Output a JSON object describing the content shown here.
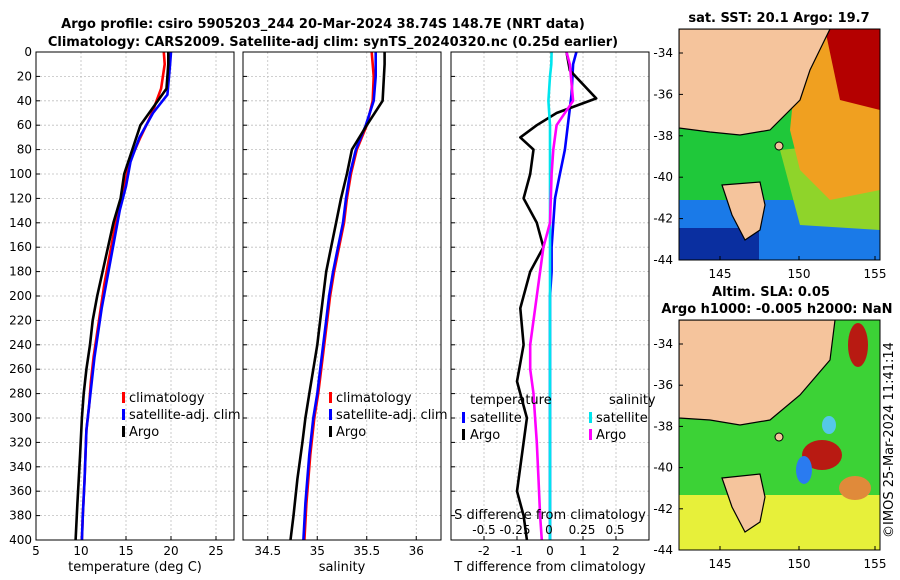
{
  "figure": {
    "title_line1": "Argo profile: csiro 5905203_244 20-Mar-2024 38.74S 148.7E (NRT data)",
    "title_line2": "Climatology: CARS2009. Satellite-adj clim: synTS_20240320.nc (0.25d earlier)",
    "watermark": "©IMOS 25-Mar-2024 11:41:14"
  },
  "colors": {
    "climatology": "#ff0000",
    "satellite": "#0000ff",
    "argo": "#000000",
    "sal_satellite": "#00e5ee",
    "sal_argo": "#ff00ff"
  },
  "chart_data": [
    {
      "type": "line",
      "id": "temperature",
      "xlabel": "temperature (deg C)",
      "xlim": [
        5,
        27
      ],
      "xticks": [
        5,
        10,
        15,
        20,
        25
      ],
      "ylim": [
        400,
        0
      ],
      "yticks": [
        0,
        20,
        40,
        60,
        80,
        100,
        120,
        140,
        160,
        180,
        200,
        220,
        240,
        260,
        280,
        300,
        320,
        340,
        360,
        380,
        400
      ],
      "grid": true,
      "legend": [
        "climatology",
        "satellite-adj. clim",
        "Argo"
      ],
      "series": [
        {
          "name": "climatology",
          "color": "#ff0000",
          "x": [
            19.2,
            19.3,
            18.9,
            17.9,
            16.6,
            15.4,
            14.8,
            14.1,
            13.6,
            13.1,
            12.6,
            12.2,
            11.8,
            11.4,
            11.1,
            10.9,
            10.6,
            10.4,
            10.2,
            10.1
          ],
          "y": [
            0,
            10,
            30,
            50,
            70,
            90,
            110,
            130,
            150,
            170,
            190,
            210,
            230,
            250,
            270,
            290,
            310,
            350,
            380,
            400
          ]
        },
        {
          "name": "satellite-adj. clim",
          "color": "#0000ff",
          "x": [
            20.0,
            19.9,
            19.6,
            18.0,
            16.5,
            15.5,
            15.0,
            14.3,
            13.8,
            13.3,
            12.8,
            12.3,
            11.9,
            11.5,
            11.2,
            10.9,
            10.6,
            10.4,
            10.2,
            10.1
          ],
          "y": [
            0,
            10,
            35,
            50,
            70,
            90,
            110,
            130,
            150,
            170,
            190,
            210,
            230,
            250,
            270,
            290,
            310,
            350,
            380,
            400
          ]
        },
        {
          "name": "Argo",
          "color": "#000000",
          "x": [
            19.7,
            19.7,
            19.5,
            16.6,
            15.7,
            14.8,
            14.4,
            13.6,
            13.0,
            12.4,
            11.8,
            11.3,
            11.0,
            10.6,
            10.3,
            10.1,
            9.9,
            9.6,
            9.4
          ],
          "y": [
            0,
            10,
            30,
            60,
            80,
            100,
            120,
            140,
            160,
            180,
            200,
            220,
            240,
            260,
            280,
            300,
            330,
            370,
            400
          ]
        }
      ]
    },
    {
      "type": "line",
      "id": "salinity",
      "xlabel": "salinity",
      "xlim": [
        34.25,
        36.25
      ],
      "xticks": [
        34.5,
        35,
        35.5,
        36
      ],
      "ylim": [
        400,
        0
      ],
      "grid": true,
      "legend": [
        "climatology",
        "satellite-adj. clim",
        "Argo"
      ],
      "series": [
        {
          "name": "climatology",
          "color": "#ff0000",
          "x": [
            35.55,
            35.57,
            35.56,
            35.5,
            35.4,
            35.34,
            35.3,
            35.27,
            35.22,
            35.17,
            35.13,
            35.1,
            35.07,
            35.04,
            35.01,
            34.97,
            34.93,
            34.89,
            34.87
          ],
          "y": [
            0,
            20,
            40,
            60,
            80,
            100,
            120,
            140,
            160,
            180,
            200,
            220,
            240,
            260,
            280,
            300,
            330,
            370,
            400
          ]
        },
        {
          "name": "satellite-adj. clim",
          "color": "#0000ff",
          "x": [
            35.59,
            35.59,
            35.57,
            35.49,
            35.39,
            35.33,
            35.29,
            35.26,
            35.21,
            35.16,
            35.12,
            35.09,
            35.06,
            35.03,
            35.0,
            34.96,
            34.92,
            34.88,
            34.86
          ],
          "y": [
            0,
            20,
            40,
            60,
            80,
            100,
            120,
            140,
            160,
            180,
            200,
            220,
            240,
            260,
            280,
            300,
            330,
            370,
            400
          ]
        },
        {
          "name": "Argo",
          "color": "#000000",
          "x": [
            35.68,
            35.68,
            35.66,
            35.5,
            35.35,
            35.3,
            35.24,
            35.19,
            35.14,
            35.09,
            35.06,
            35.03,
            35.0,
            34.96,
            34.92,
            34.88,
            34.85,
            34.8,
            34.76,
            34.73
          ],
          "y": [
            0,
            10,
            40,
            60,
            80,
            100,
            120,
            140,
            160,
            180,
            200,
            220,
            240,
            260,
            280,
            300,
            320,
            350,
            380,
            400
          ]
        }
      ]
    },
    {
      "type": "line",
      "id": "difference",
      "xlabel": "T difference from climatology",
      "xlim": [
        -3,
        3
      ],
      "xticks": [
        -2,
        -1,
        0,
        1,
        2
      ],
      "xlabel2": "S difference from climatology",
      "xticks2": [
        "-0.5",
        "-0.25",
        "0",
        "0.25",
        "0.5"
      ],
      "ylim": [
        400,
        0
      ],
      "grid": true,
      "legend_temperature": {
        "title": "temperature",
        "items": [
          "satellite",
          "Argo"
        ]
      },
      "legend_salinity": {
        "title": "salinity",
        "items": [
          "satellite",
          "Argo"
        ]
      },
      "series": [
        {
          "name": "T satellite",
          "color": "#0000ff",
          "x": [
            0.8,
            0.7,
            0.65,
            0.45,
            0.3,
            0.15,
            0.1,
            0.05,
            0.05,
            0.0,
            0.0,
            0.0,
            0.0,
            0.0,
            0.0,
            0.0,
            0.0,
            0.0
          ],
          "y": [
            0,
            10,
            35,
            80,
            100,
            120,
            140,
            160,
            180,
            200,
            220,
            240,
            260,
            280,
            300,
            330,
            370,
            400
          ]
        },
        {
          "name": "T Argo",
          "color": "#000000",
          "x": [
            0.5,
            0.6,
            1.4,
            0.2,
            -0.4,
            -0.9,
            -0.5,
            -0.6,
            -0.8,
            -0.4,
            -0.2,
            -0.6,
            -0.9,
            -0.8,
            -1.0,
            -0.7,
            -0.8,
            -0.9,
            -1.0,
            -0.8,
            -0.7
          ],
          "y": [
            0,
            15,
            38,
            50,
            60,
            70,
            80,
            100,
            120,
            140,
            160,
            180,
            210,
            240,
            270,
            300,
            320,
            340,
            360,
            380,
            400
          ]
        },
        {
          "name": "S satellite",
          "color": "#00e5ee",
          "x": [
            0.05,
            0.04,
            0.0,
            -0.05,
            0.0,
            0.0,
            0.0,
            0.0,
            0.0,
            0.0,
            0.0,
            0.0,
            0.0,
            0.0,
            0.0,
            0.0,
            0.0,
            0.0
          ],
          "y": [
            0,
            10,
            20,
            40,
            60,
            100,
            140,
            160,
            180,
            200,
            220,
            240,
            260,
            280,
            300,
            330,
            370,
            400
          ]
        },
        {
          "name": "S Argo",
          "color": "#ff00ff",
          "x": [
            0.5,
            0.6,
            0.7,
            0.2,
            0.1,
            0.05,
            0.0,
            -0.2,
            -0.3,
            -0.4,
            -0.5,
            -0.6,
            -0.6,
            -0.5,
            -0.45,
            -0.4,
            -0.35,
            -0.3,
            -0.25
          ],
          "y": [
            0,
            10,
            40,
            60,
            80,
            100,
            140,
            160,
            180,
            200,
            220,
            240,
            260,
            280,
            300,
            320,
            350,
            380,
            400
          ]
        }
      ]
    },
    {
      "type": "heatmap",
      "id": "sst-map",
      "title": "sat. SST: 20.1 Argo: 19.7",
      "xticks": [
        145,
        150,
        155
      ],
      "yticks": [
        -34,
        -36,
        -38,
        -40,
        -42,
        -44
      ]
    },
    {
      "type": "heatmap",
      "id": "sla-map",
      "title_line1": "Altim. SLA: 0.05",
      "title_line2": "Argo h1000: -0.005 h2000: NaN",
      "xticks": [
        145,
        150,
        155
      ],
      "yticks": [
        -34,
        -36,
        -38,
        -40,
        -42,
        -44
      ]
    }
  ]
}
